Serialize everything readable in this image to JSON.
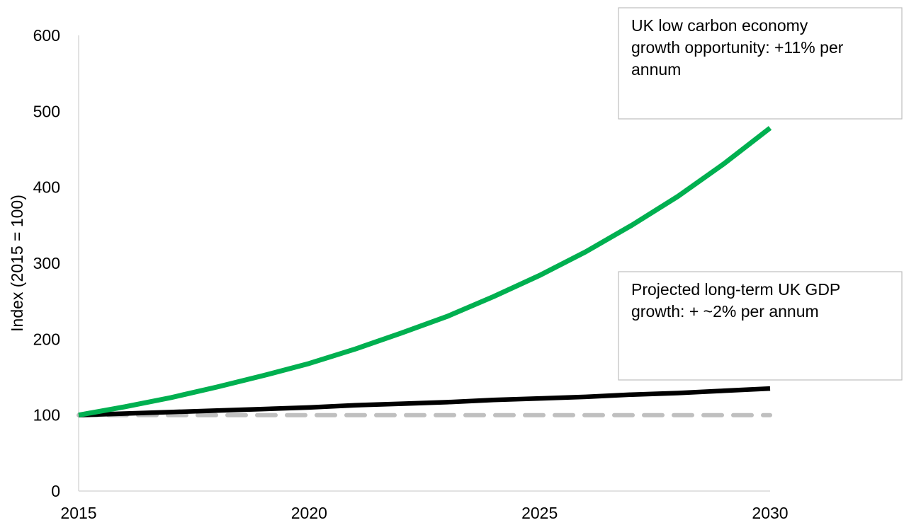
{
  "chart_data": {
    "type": "line",
    "title": "",
    "xlabel": "",
    "ylabel": "Index (2015 = 100)",
    "xlim": [
      2015,
      2030
    ],
    "ylim": [
      0,
      600
    ],
    "x_ticks": [
      2015,
      2020,
      2025,
      2030
    ],
    "y_ticks": [
      0,
      100,
      200,
      300,
      400,
      500,
      600
    ],
    "grid": false,
    "legend": "none",
    "x": [
      2015,
      2016,
      2017,
      2018,
      2019,
      2020,
      2021,
      2022,
      2023,
      2024,
      2025,
      2026,
      2027,
      2028,
      2029,
      2030
    ],
    "series": [
      {
        "key": "low_carbon",
        "color": "#00b050",
        "style": "solid",
        "values": [
          100,
          111,
          123,
          137,
          152,
          168,
          187,
          208,
          230,
          256,
          284,
          315,
          350,
          388,
          431,
          478
        ]
      },
      {
        "key": "gdp",
        "color": "#000000",
        "style": "solid",
        "values": [
          100,
          102,
          104,
          106,
          108,
          110,
          113,
          115,
          117,
          120,
          122,
          124,
          127,
          129,
          132,
          135
        ]
      },
      {
        "key": "baseline",
        "color": "#bfbfbf",
        "style": "dashed",
        "values": [
          100,
          100,
          100,
          100,
          100,
          100,
          100,
          100,
          100,
          100,
          100,
          100,
          100,
          100,
          100,
          100
        ]
      }
    ],
    "annotations": [
      {
        "key": "low_carbon_note",
        "lines": [
          "UK low carbon economy",
          "growth opportunity: +11% per",
          "annum"
        ]
      },
      {
        "key": "gdp_note",
        "lines": [
          "Projected long-term UK GDP",
          "growth: + ~2% per annum"
        ]
      }
    ]
  }
}
